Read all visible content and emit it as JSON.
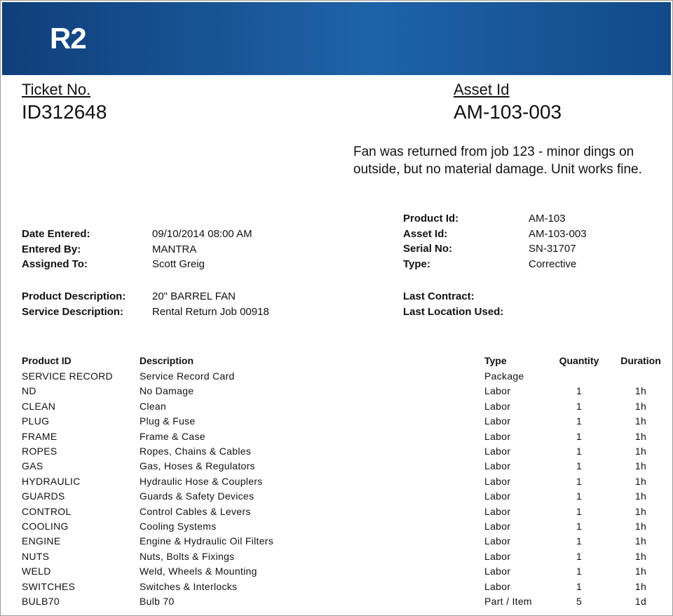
{
  "header": {
    "logo": "R2"
  },
  "ticket": {
    "label": "Ticket No.",
    "value": "ID312648"
  },
  "asset": {
    "label": "Asset Id",
    "value": "AM-103-003"
  },
  "notes": "Fan was returned from job 123 - minor dings on outside, but no material damage. Unit works fine.",
  "left_fields": [
    [
      "Date Entered:",
      "09/10/2014 08:00 AM"
    ],
    [
      "Entered By:",
      "MANTRA"
    ],
    [
      "Assigned To:",
      "Scott Greig"
    ]
  ],
  "left_fields2": [
    [
      "Product Description:",
      "20\" BARREL FAN"
    ],
    [
      "Service Description:",
      "Rental Return Job 00918"
    ]
  ],
  "right_fields": [
    [
      "Product Id:",
      "AM-103"
    ],
    [
      "Asset Id:",
      "AM-103-003"
    ],
    [
      "Serial No:",
      "SN-31707"
    ],
    [
      "Type:",
      "Corrective"
    ]
  ],
  "right_fields2": [
    [
      "Last Contract:"
    ],
    [
      "Last Location Used:"
    ]
  ],
  "table": {
    "columns": [
      "Product ID",
      "Description",
      "Type",
      "Quantity",
      "Duration"
    ],
    "rows": [
      [
        "SERVICE RECORD",
        "Service Record Card",
        "Package",
        null,
        null
      ],
      [
        "ND",
        "No Damage",
        "Labor",
        1,
        "1h"
      ],
      [
        "CLEAN",
        "Clean",
        "Labor",
        1,
        "1h"
      ],
      [
        "PLUG",
        "Plug & Fuse",
        "Labor",
        1,
        "1h"
      ],
      [
        "FRAME",
        "Frame & Case",
        "Labor",
        1,
        "1h"
      ],
      [
        "ROPES",
        "Ropes, Chains & Cables",
        "Labor",
        1,
        "1h"
      ],
      [
        "GAS",
        "Gas, Hoses & Regulators",
        "Labor",
        1,
        "1h"
      ],
      [
        "HYDRAULIC",
        "Hydraulic Hose & Couplers",
        "Labor",
        1,
        "1h"
      ],
      [
        "GUARDS",
        "Guards & Safety Devices",
        "Labor",
        1,
        "1h"
      ],
      [
        "CONTROL",
        "Control Cables & Levers",
        "Labor",
        1,
        "1h"
      ],
      [
        "COOLING",
        "Cooling Systems",
        "Labor",
        1,
        "1h"
      ],
      [
        "ENGINE",
        "Engine & Hydraulic Oil Filters",
        "Labor",
        1,
        "1h"
      ],
      [
        "NUTS",
        "Nuts, Bolts & Fixings",
        "Labor",
        1,
        "1h"
      ],
      [
        "WELD",
        "Weld, Wheels & Mounting",
        "Labor",
        1,
        "1h"
      ],
      [
        "SWITCHES",
        "Switches & Interlocks",
        "Labor",
        1,
        "1h"
      ],
      [
        "BULB70",
        "Bulb 70",
        "Part / Item",
        5,
        "1d"
      ]
    ]
  }
}
